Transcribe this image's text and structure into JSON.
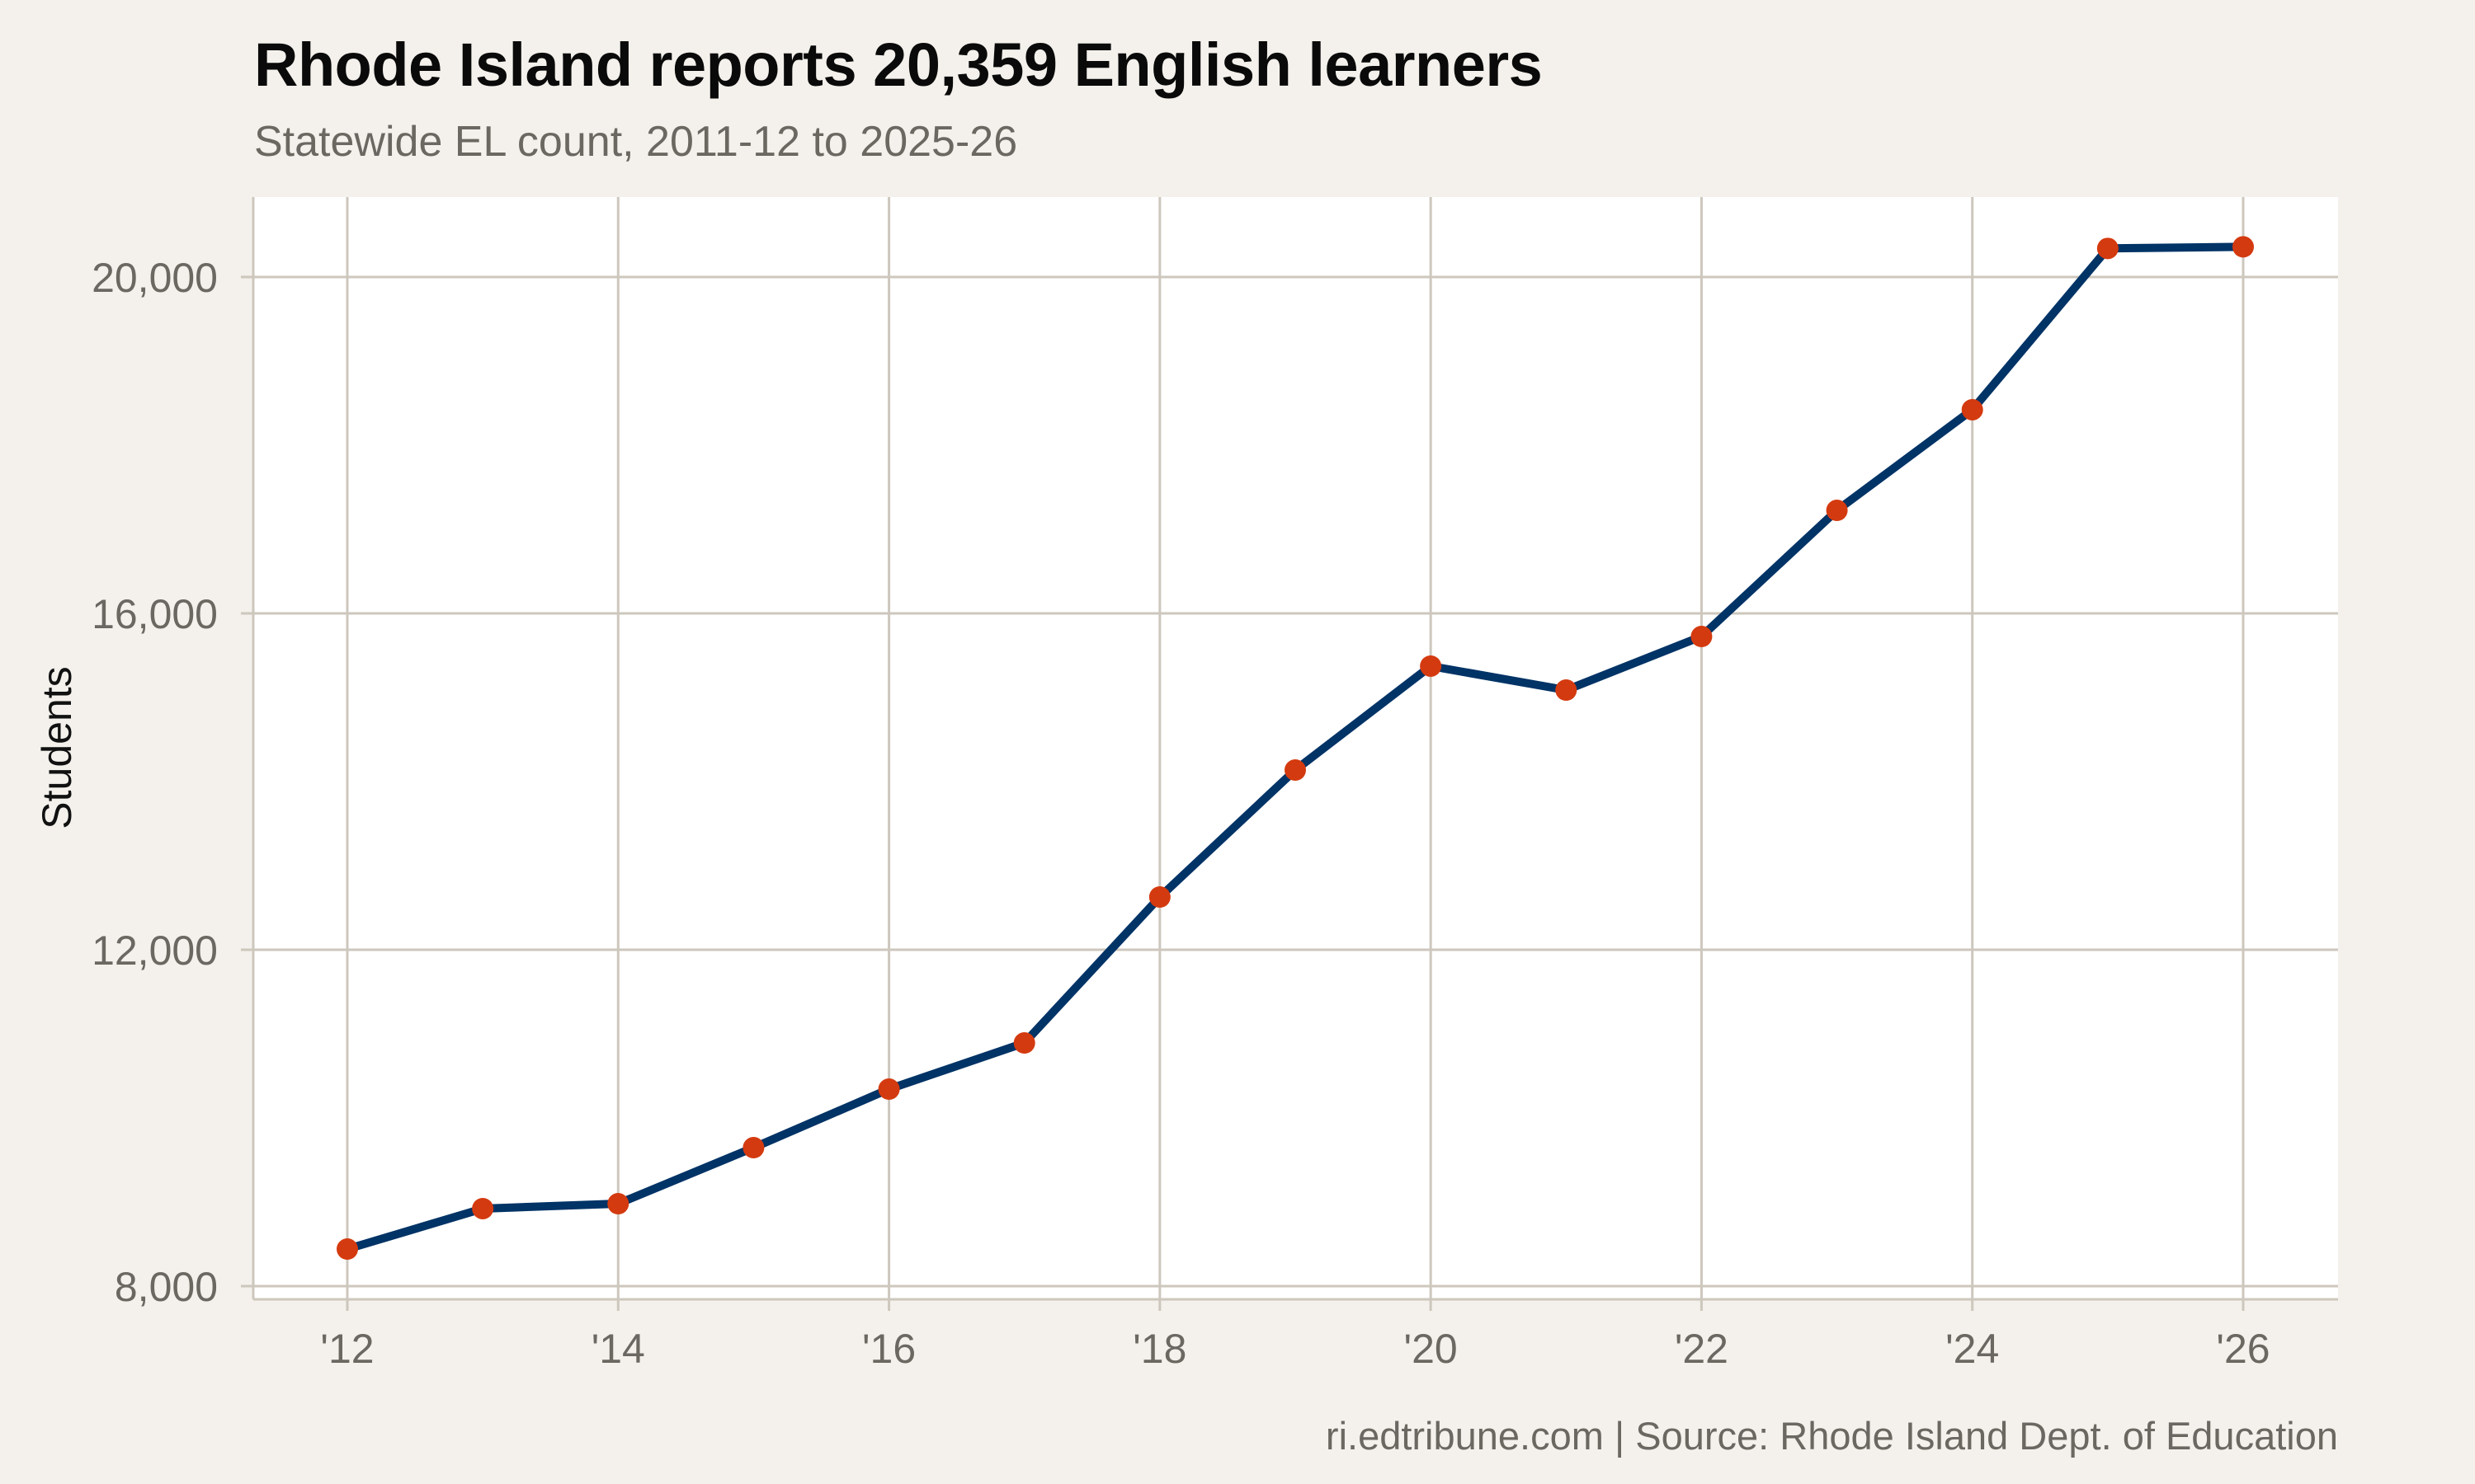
{
  "header": {
    "title": "Rhode Island reports 20,359 English learners",
    "subtitle": "Statewide EL count, 2011-12 to 2025-26"
  },
  "footer": {
    "credit": "ri.edtribune.com | Source: Rhode Island Dept. of Education"
  },
  "colors": {
    "background": "#f4f1ec",
    "panel": "#ffffff",
    "grid": "#cdc7bd",
    "line": "#003366",
    "points": "#d43a0f",
    "tick_text": "#6b6862"
  },
  "chart_data": {
    "type": "line",
    "title": "Rhode Island reports 20,359 English learners",
    "subtitle": "Statewide EL count, 2011-12 to 2025-26",
    "xlabel": "",
    "ylabel": "Students",
    "x": [
      2012,
      2013,
      2014,
      2015,
      2016,
      2017,
      2018,
      2019,
      2020,
      2021,
      2022,
      2023,
      2024,
      2025,
      2026
    ],
    "x_tick_values": [
      2012,
      2014,
      2016,
      2018,
      2020,
      2022,
      2024,
      2026
    ],
    "x_tick_labels": [
      "'12",
      "'14",
      "'16",
      "'18",
      "'20",
      "'22",
      "'24",
      "'26"
    ],
    "y_tick_values": [
      8000,
      12000,
      16000,
      20000
    ],
    "y_tick_labels": [
      "8,000",
      "12,000",
      "16,000",
      "20,000"
    ],
    "series": [
      {
        "name": "English learners",
        "values": [
          8441,
          8922,
          8980,
          9647,
          10343,
          10892,
          12627,
          14137,
          15373,
          15088,
          15725,
          17225,
          18422,
          20340,
          20359
        ]
      }
    ],
    "xlim": [
      2011.35,
      2026.65
    ],
    "ylim": [
      7850,
      20950
    ],
    "grid": true,
    "legend": "none",
    "source": "ri.edtribune.com | Source: Rhode Island Dept. of Education"
  }
}
